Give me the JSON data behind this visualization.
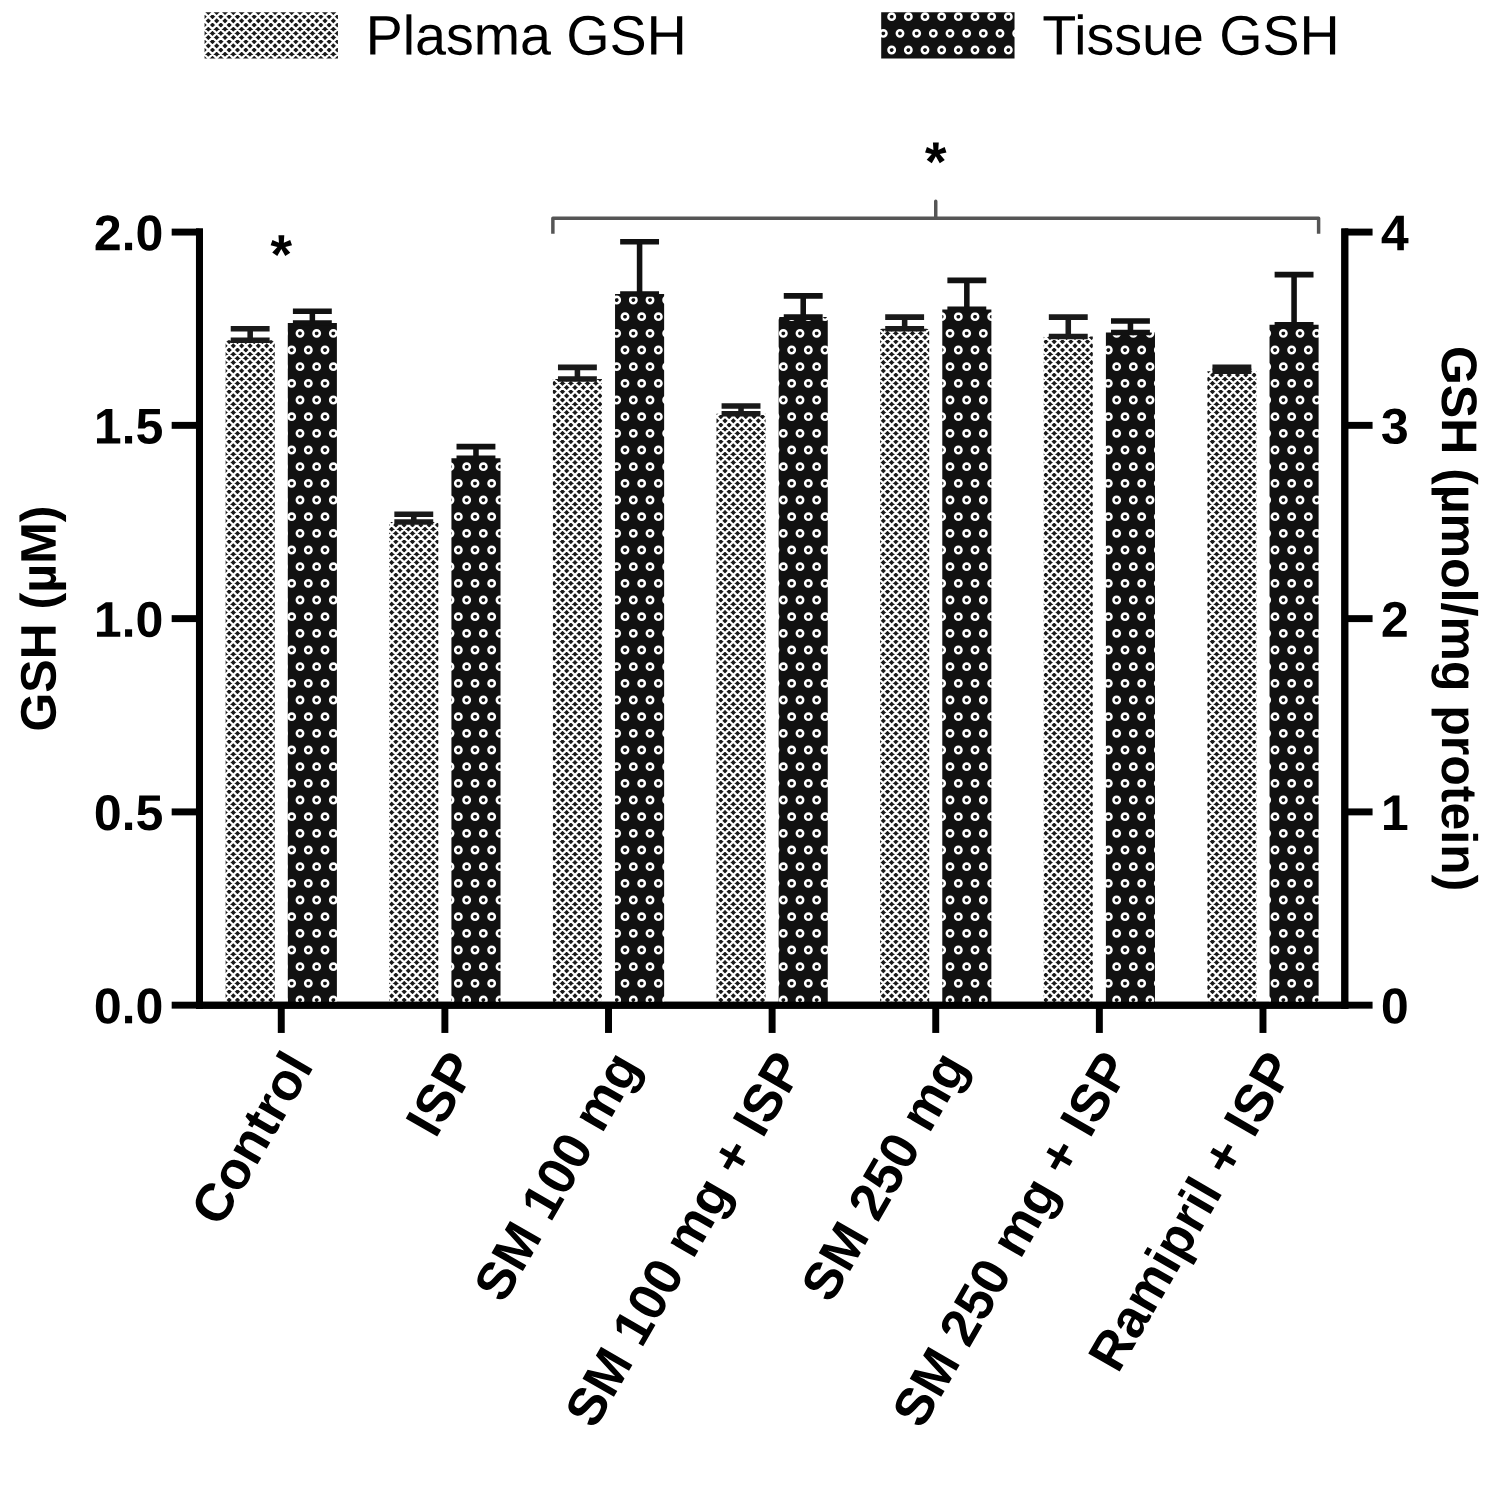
{
  "chart_data": {
    "type": "bar",
    "categories": [
      "Control",
      "ISP",
      "SM 100 mg",
      "SM 100 mg + ISP",
      "SM 250 mg",
      "SM 250 mg + ISP",
      "Ramipril + ISP"
    ],
    "series": [
      {
        "name": "Plasma GSH",
        "color": "#1a1a1a",
        "values": [
          1.72,
          1.25,
          1.62,
          1.53,
          1.75,
          1.73,
          1.64
        ],
        "errors": [
          0.03,
          0.02,
          0.03,
          0.02,
          0.03,
          0.05,
          0.01
        ]
      },
      {
        "name": "Tissue GSH",
        "color": "#111111",
        "axis": "y2",
        "values": [
          3.53,
          2.83,
          3.68,
          3.56,
          3.6,
          3.48,
          3.52
        ],
        "errors": [
          0.06,
          0.06,
          0.27,
          0.11,
          0.15,
          0.06,
          0.26
        ]
      }
    ],
    "ylabel": "GSH (µM)",
    "y2label": "GSH (µmol/mg protein)",
    "ylim": [
      0,
      2.0
    ],
    "yticks": [
      {
        "value": 0,
        "label": "0.0"
      },
      {
        "value": 0.5,
        "label": "0.5"
      },
      {
        "value": 1.0,
        "label": "1.0"
      },
      {
        "value": 1.5,
        "label": "1.5"
      },
      {
        "value": 2.0,
        "label": "2.0"
      }
    ],
    "y2lim": [
      0,
      4
    ],
    "y2ticks": [
      0,
      1,
      2,
      3,
      4
    ],
    "annotations": [
      "*",
      "*"
    ],
    "legend": "top",
    "grid": false
  }
}
